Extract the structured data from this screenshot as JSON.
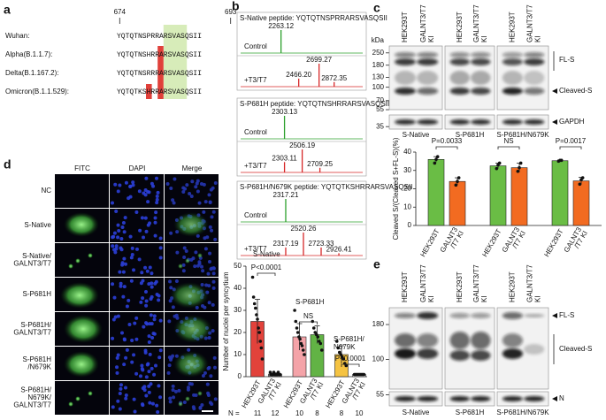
{
  "a": {
    "label": "a",
    "start": 674,
    "end": 693,
    "rows": [
      {
        "name": "Wuhan:",
        "seq": "YQTQTNSPRRARSVASQSII"
      },
      {
        "name": "Alpha(B.1.1.7):",
        "seq": "YQTQTNSHRRARSVASQSII"
      },
      {
        "name": "Delta(B.1.167.2):",
        "seq": "YQTQTNSRRRARSVASQSII"
      },
      {
        "name": "Omicron(B.1.1.529):",
        "seq": "YQTQTKSHRRARSVASQSII"
      }
    ]
  },
  "b": {
    "label": "b",
    "mz_range": [
      1800,
      3200
    ],
    "intensity_range": [
      0,
      1
    ],
    "spectra": [
      {
        "title": "S-Native peptide: YQTQTNSPRRARSVASQSII",
        "traces": [
          {
            "name": "Control",
            "color": "#2ca02c",
            "peaks": [
              {
                "mz": 2263.12,
                "height": 1
              }
            ]
          },
          {
            "name": "+T3/T7",
            "color": "#d62728",
            "peaks": [
              {
                "mz": 2466.2,
                "label": "2466.20",
                "height": 0.35
              },
              {
                "mz": 2699.27,
                "height": 1
              },
              {
                "mz": 2872.35,
                "height": 0.2
              }
            ]
          }
        ]
      },
      {
        "title": "S-P681H peptide: YQTQTNSHRRARSVASQSII",
        "traces": [
          {
            "name": "Control",
            "color": "#2ca02c",
            "peaks": [
              {
                "mz": 2303.13,
                "height": 1
              }
            ]
          },
          {
            "name": "+T3/T7",
            "color": "#d62728",
            "peaks": [
              {
                "mz": 2303.11,
                "height": 0.45
              },
              {
                "mz": 2506.19,
                "height": 1
              },
              {
                "mz": 2709.25,
                "height": 0.2
              }
            ]
          }
        ]
      },
      {
        "title": "S-P681H/N679K peptide: YQTQTKSHRRARSVASQSII",
        "traces": [
          {
            "name": "Control",
            "color": "#2ca02c",
            "peaks": [
              {
                "mz": 2317.21,
                "height": 1
              }
            ]
          },
          {
            "name": "+T3/T7",
            "color": "#d62728",
            "peaks": [
              {
                "mz": 2317.19,
                "height": 0.35
              },
              {
                "mz": 2520.26,
                "height": 1
              },
              {
                "mz": 2723.33,
                "height": 0.35
              },
              {
                "mz": 2926.41,
                "height": 0.1
              }
            ]
          }
        ]
      }
    ]
  },
  "c": {
    "label": "c",
    "lanes": [
      [
        "HEK293T"
      ],
      [
        "GALNT3/T7",
        "KI"
      ]
    ],
    "kda_label": "kDa",
    "markers": [
      250,
      180,
      130,
      100,
      70,
      55,
      35
    ],
    "kda_range": [
      280,
      32
    ],
    "bands": [
      "FL-S",
      "Cleaved-S",
      "GAPDH"
    ],
    "groups": [
      "S-Native",
      "S-P681H",
      "S-P681H/N679K"
    ],
    "chart": {
      "type": "bar",
      "ylabel": "Cleaved S/(Cleaved S+FL-S)(%)",
      "ylim": [
        0,
        40
      ],
      "yticks": [
        0,
        10,
        20,
        30,
        40
      ],
      "comparisons": [
        "P=0.0033",
        "NS",
        "P=0.0017"
      ],
      "series": [
        {
          "label": [
            "HEK293T"
          ],
          "color": "#6abd45",
          "values": [
            36,
            32.5,
            35.3
          ],
          "errors": [
            1.5,
            1.5,
            0.4
          ],
          "points": [
            [
              34,
              36,
              37.5
            ],
            [
              31,
              33,
              34
            ],
            [
              35,
              35.5,
              35.5
            ]
          ]
        },
        {
          "label": [
            "GALNT3",
            "/T7 KI"
          ],
          "color": "#f26b21",
          "values": [
            24,
            31.5,
            24.3
          ],
          "errors": [
            2,
            2.5,
            2
          ],
          "points": [
            [
              22,
              24,
              26
            ],
            [
              29.5,
              31.5,
              34
            ],
            [
              22.5,
              25,
              26
            ]
          ]
        }
      ]
    }
  },
  "d": {
    "label": "d",
    "columns": [
      "FITC",
      "DAPI",
      "Merge"
    ],
    "rows": [
      [
        "NC"
      ],
      [
        "S-Native"
      ],
      [
        "S-Native/",
        "GALNT3/T7"
      ],
      [
        "S-P681H"
      ],
      [
        "S-P681H/",
        "GALNT3/T7"
      ],
      [
        "S-P681H",
        "/N679K"
      ],
      [
        "S-P681H/",
        "N679K/",
        "GALNT3/T7"
      ]
    ],
    "chart": {
      "type": "bar",
      "ylabel": "Number of nuclei per syncytium",
      "ylim": [
        0,
        50
      ],
      "yticks": [
        0,
        10,
        20,
        30,
        40,
        50
      ],
      "groups": [
        [
          "S-Native"
        ],
        [
          "S-P681H"
        ],
        [
          "S-P681H/",
          "N679K"
        ]
      ],
      "comparisons": [
        "P<0.0001",
        "NS",
        "P<0.0001"
      ],
      "bar_labels": [
        [
          "HEK293T"
        ],
        [
          "GALNT3",
          "/T7 KI"
        ],
        [
          "HEK293T"
        ],
        [
          "GALNT3",
          "/T7 KI"
        ],
        [
          "HEK293T"
        ],
        [
          "GALNT3",
          "/T7 KI"
        ]
      ],
      "colors": [
        "#e2423b",
        "#666666",
        "#f4a3a8",
        "#62b345",
        "#f5c342",
        "#e8e8e8"
      ],
      "values": [
        25,
        1.2,
        18,
        19,
        10,
        1
      ],
      "errors": [
        10,
        0.5,
        6,
        4,
        4,
        0.3
      ],
      "points": [
        [
          45,
          36,
          33,
          31,
          28,
          26,
          22,
          20,
          16,
          13,
          8
        ],
        [
          2,
          1,
          1,
          1,
          2,
          1,
          1,
          1,
          1,
          2,
          1,
          1
        ],
        [
          30,
          25,
          22,
          20,
          18,
          17,
          15,
          14,
          12,
          10
        ],
        [
          25,
          22,
          20,
          19,
          18,
          16,
          15,
          12
        ],
        [
          16,
          13,
          11,
          10,
          9,
          8,
          6,
          5
        ],
        [
          1,
          1,
          1,
          1,
          1,
          1,
          1,
          1,
          1,
          1
        ]
      ],
      "n_label": "N =",
      "n": [
        11,
        12,
        10,
        8,
        8,
        10
      ]
    }
  },
  "e": {
    "label": "e",
    "lanes": [
      [
        "HEK293T"
      ],
      [
        "GALNT3/T7",
        "KI"
      ]
    ],
    "markers": [
      180,
      100,
      55
    ],
    "kda_range": [
      250,
      45
    ],
    "bands": [
      "FL-S",
      "Cleaved-S",
      "N"
    ],
    "groups": [
      "S-Native",
      "S-P681H",
      "S-P681H/N679K"
    ]
  }
}
